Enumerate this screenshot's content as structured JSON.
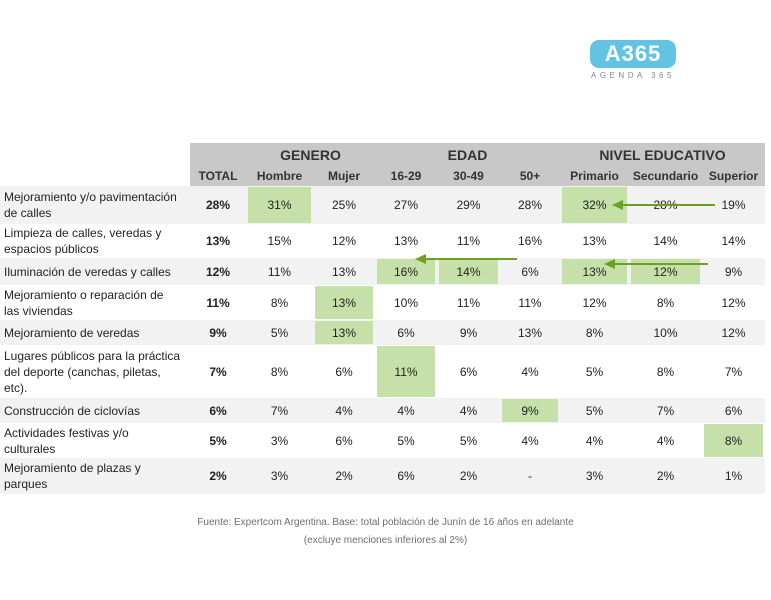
{
  "logo": {
    "text": "A365",
    "subtitle": "AGENDA 365",
    "color": "#62c3e3"
  },
  "chart_data": {
    "type": "table",
    "column_groups": [
      {
        "label": "",
        "span": 1
      },
      {
        "label": "GENERO",
        "span": 2
      },
      {
        "label": "EDAD",
        "span": 3
      },
      {
        "label": "NIVEL EDUCATIVO",
        "span": 3
      }
    ],
    "columns": [
      "TOTAL",
      "Hombre",
      "Mujer",
      "16-29",
      "30-49",
      "50+",
      "Primario",
      "Secundario",
      "Superior"
    ],
    "rows": [
      {
        "label": "Mejoramiento y/o pavimentación de calles",
        "values": [
          "28%",
          "31%",
          "25%",
          "27%",
          "29%",
          "28%",
          "32%",
          "28%",
          "19%"
        ],
        "highlight": [
          1,
          6
        ]
      },
      {
        "label": "Limpieza de calles, veredas y espacios públicos",
        "values": [
          "13%",
          "15%",
          "12%",
          "13%",
          "11%",
          "16%",
          "13%",
          "14%",
          "14%"
        ],
        "highlight": []
      },
      {
        "label": "Iluminación de veredas y calles",
        "values": [
          "12%",
          "11%",
          "13%",
          "16%",
          "14%",
          "6%",
          "13%",
          "12%",
          "9%"
        ],
        "highlight": [
          3,
          4,
          6,
          7
        ]
      },
      {
        "label": "Mejoramiento o reparación de las viviendas",
        "values": [
          "11%",
          "8%",
          "13%",
          "10%",
          "11%",
          "11%",
          "12%",
          "8%",
          "12%"
        ],
        "highlight": [
          2
        ]
      },
      {
        "label": "Mejoramiento de veredas",
        "values": [
          "9%",
          "5%",
          "13%",
          "6%",
          "9%",
          "13%",
          "8%",
          "10%",
          "12%"
        ],
        "highlight": [
          2
        ]
      },
      {
        "label": "Lugares públicos para la práctica del deporte (canchas, piletas, etc).",
        "values": [
          "7%",
          "8%",
          "6%",
          "11%",
          "6%",
          "4%",
          "5%",
          "8%",
          "7%"
        ],
        "highlight": [
          3
        ]
      },
      {
        "label": "Construcción de ciclovías",
        "values": [
          "6%",
          "7%",
          "4%",
          "4%",
          "4%",
          "9%",
          "5%",
          "7%",
          "6%"
        ],
        "highlight": [
          5
        ]
      },
      {
        "label": "Actividades festivas y/o culturales",
        "values": [
          "5%",
          "3%",
          "6%",
          "5%",
          "5%",
          "4%",
          "4%",
          "4%",
          "8%"
        ],
        "highlight": [
          8
        ]
      },
      {
        "label": "Mejoramiento de plazas y parques",
        "values": [
          "2%",
          "3%",
          "2%",
          "6%",
          "2%",
          "-",
          "3%",
          "2%",
          "1%"
        ],
        "highlight": []
      }
    ],
    "colors": {
      "header": "#c8c8c8",
      "row_band": "#f2f2f2",
      "highlight": "#c5e0a8",
      "arrow": "#6aa123"
    }
  },
  "source": {
    "line1": "Fuente: Expertcom Argentina. Base: total población de Junín de 16 años en adelante",
    "line2": "(excluye menciones inferiores al 2%)"
  }
}
